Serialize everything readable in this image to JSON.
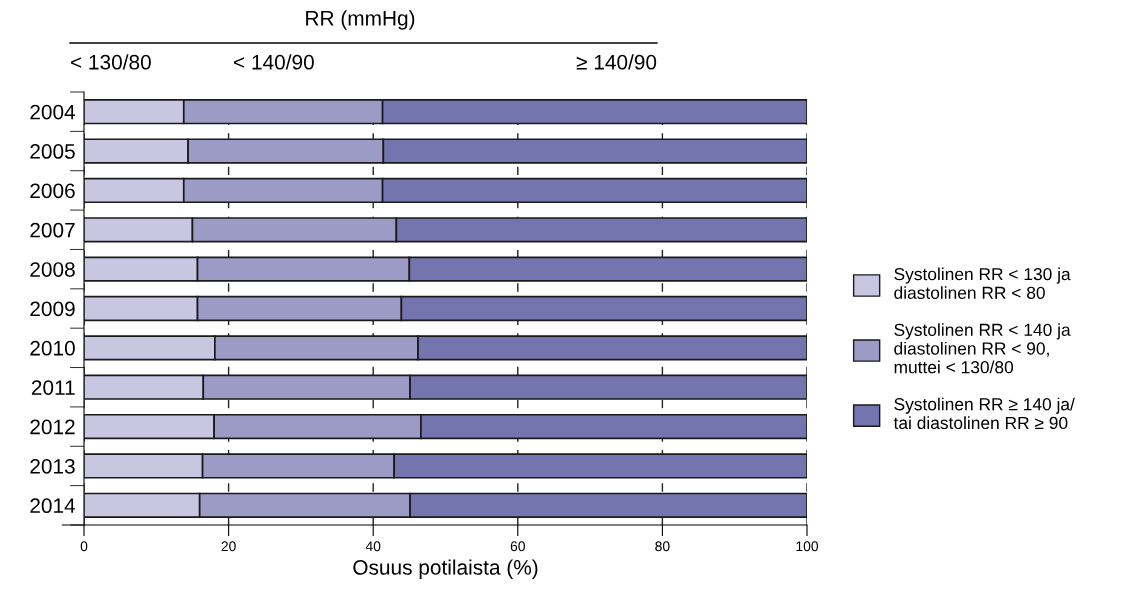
{
  "chart_data": {
    "type": "bar",
    "orientation": "horizontal",
    "stacked": true,
    "title": "RR (mmHg)",
    "xlabel": "Osuus potilaista (%)",
    "categories": [
      "2004",
      "2005",
      "2006",
      "2007",
      "2008",
      "2009",
      "2010",
      "2011",
      "2012",
      "2013",
      "2014"
    ],
    "series": [
      {
        "name": "Systolinen RR < 130 ja diastolinen RR < 80",
        "color": "#c8c6e0",
        "values": [
          13.8,
          14.4,
          13.8,
          15.0,
          15.7,
          15.7,
          18.1,
          16.5,
          18.0,
          16.4,
          16.0
        ]
      },
      {
        "name": "Systolinen RR < 140 ja diastolinen RR < 90, muttei < 130/80",
        "color": "#9c9bc6",
        "values": [
          27.5,
          27.0,
          27.5,
          28.2,
          29.3,
          28.2,
          28.1,
          28.6,
          28.6,
          26.5,
          29.1
        ]
      },
      {
        "name": "Systolinen RR ≥ 140 ja/ tai diastolinen RR ≥ 90",
        "color": "#7474ae",
        "values": [
          58.7,
          58.6,
          58.7,
          56.8,
          55.0,
          56.1,
          53.8,
          54.9,
          53.4,
          57.1,
          54.9
        ]
      }
    ],
    "xlim": [
      0,
      100
    ],
    "xticks": [
      0,
      20,
      40,
      60,
      80,
      100
    ],
    "grid": "x",
    "legend": "right",
    "annotations": [
      "< 130/80",
      "< 140/90",
      "≥ 140/90"
    ]
  }
}
